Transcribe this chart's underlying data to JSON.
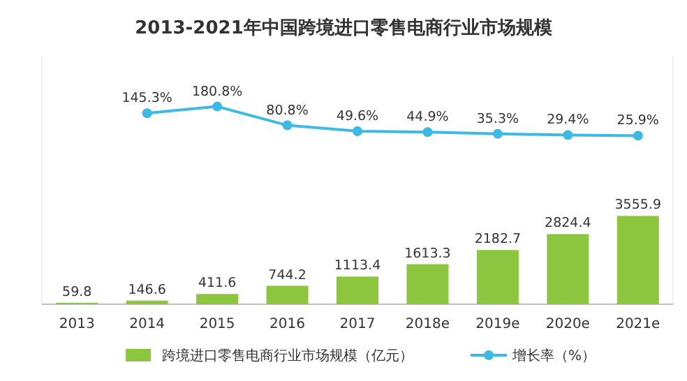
{
  "chart_data": {
    "type": "bar",
    "title": "2013-2021年中国跨境进口零售电商行业市场规模",
    "categories": [
      "2013",
      "2014",
      "2015",
      "2016",
      "2017",
      "2018e",
      "2019e",
      "2020e",
      "2021e"
    ],
    "series": [
      {
        "name": "跨境进口零售电商行业市场规模（亿元）",
        "color": "#8cc63e",
        "values": [
          59.8,
          146.6,
          411.6,
          744.2,
          1113.4,
          1613.3,
          2182.7,
          2824.4,
          3555.9
        ],
        "value_labels": [
          "59.8",
          "146.6",
          "411.6",
          "744.2",
          "1113.4",
          "1613.3",
          "2182.7",
          "2824.4",
          "3555.9"
        ]
      },
      {
        "name": "增长率（%）",
        "type": "line",
        "axis": "y2",
        "color": "#3cb9e5",
        "values": [
          null,
          145.3,
          180.8,
          80.8,
          49.6,
          44.9,
          35.3,
          29.4,
          25.9
        ],
        "value_labels": [
          null,
          "145.3%",
          "180.8%",
          "80.8%",
          "49.6%",
          "44.9%",
          "35.3%",
          "29.4%",
          "25.9%"
        ]
      }
    ],
    "ylim": [
      0,
      10000
    ],
    "y2lim": [
      -870,
      450
    ],
    "legend": "bottom",
    "marker": "circle",
    "tick_labels": "x"
  }
}
